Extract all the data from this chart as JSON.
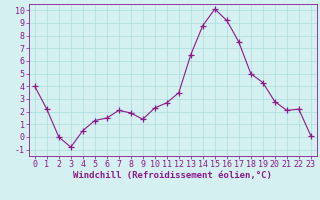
{
  "x": [
    0,
    1,
    2,
    3,
    4,
    5,
    6,
    7,
    8,
    9,
    10,
    11,
    12,
    13,
    14,
    15,
    16,
    17,
    18,
    19,
    20,
    21,
    22,
    23
  ],
  "y": [
    4,
    2.2,
    0.0,
    -0.8,
    0.5,
    1.3,
    1.5,
    2.1,
    1.9,
    1.4,
    2.3,
    2.7,
    3.5,
    6.5,
    8.8,
    10.1,
    9.2,
    7.5,
    5.0,
    4.3,
    2.8,
    2.1,
    2.2,
    0.1
  ],
  "line_color": "#8B1A8B",
  "marker": "+",
  "marker_size": 4,
  "bg_color": "#d4f0f0",
  "grid_color": "#aadddd",
  "xlabel": "Windchill (Refroidissement éolien,°C)",
  "ylim": [
    -1.5,
    10.5
  ],
  "xlim": [
    -0.5,
    23.5
  ],
  "yticks": [
    -1,
    0,
    1,
    2,
    3,
    4,
    5,
    6,
    7,
    8,
    9,
    10
  ],
  "xticks": [
    0,
    1,
    2,
    3,
    4,
    5,
    6,
    7,
    8,
    9,
    10,
    11,
    12,
    13,
    14,
    15,
    16,
    17,
    18,
    19,
    20,
    21,
    22,
    23
  ],
  "xlabel_fontsize": 6.5,
  "tick_fontsize": 6.0
}
